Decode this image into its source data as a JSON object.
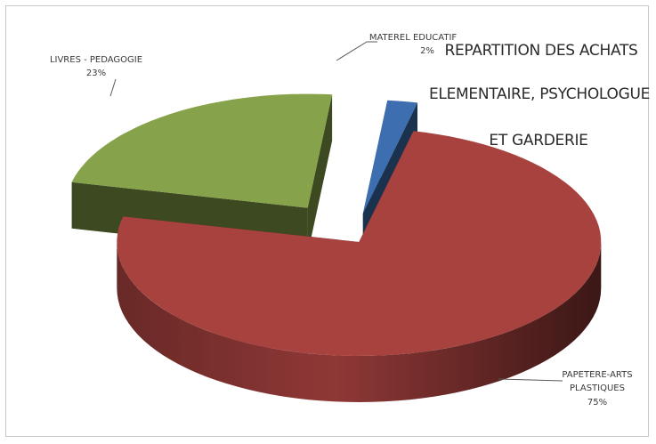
{
  "chart_data": {
    "type": "pie",
    "title_lines": [
      "REPARTITION DES ACHATS",
      "ELEMENTAIRE, PSYCHOLOGUE",
      "ET GARDERIE"
    ],
    "slices": [
      {
        "name": "PAPETERE-ARTS PLASTIQUES",
        "name_lines": [
          "PAPETERE-ARTS",
          "PLASTIQUES"
        ],
        "value": 75,
        "label": "75%",
        "color": "#a8423f"
      },
      {
        "name": "LIVRES - PEDAGOGIE",
        "name_lines": [
          "LIVRES - PEDAGOGIE"
        ],
        "value": 23,
        "label": "23%",
        "color": "#86a24a"
      },
      {
        "name": "MATEREL EDUCATIF",
        "name_lines": [
          "MATEREL EDUCATIF"
        ],
        "value": 2,
        "label": "2%",
        "color": "#3d6fb0"
      }
    ],
    "style": "3d-exploded",
    "legend": "none"
  }
}
